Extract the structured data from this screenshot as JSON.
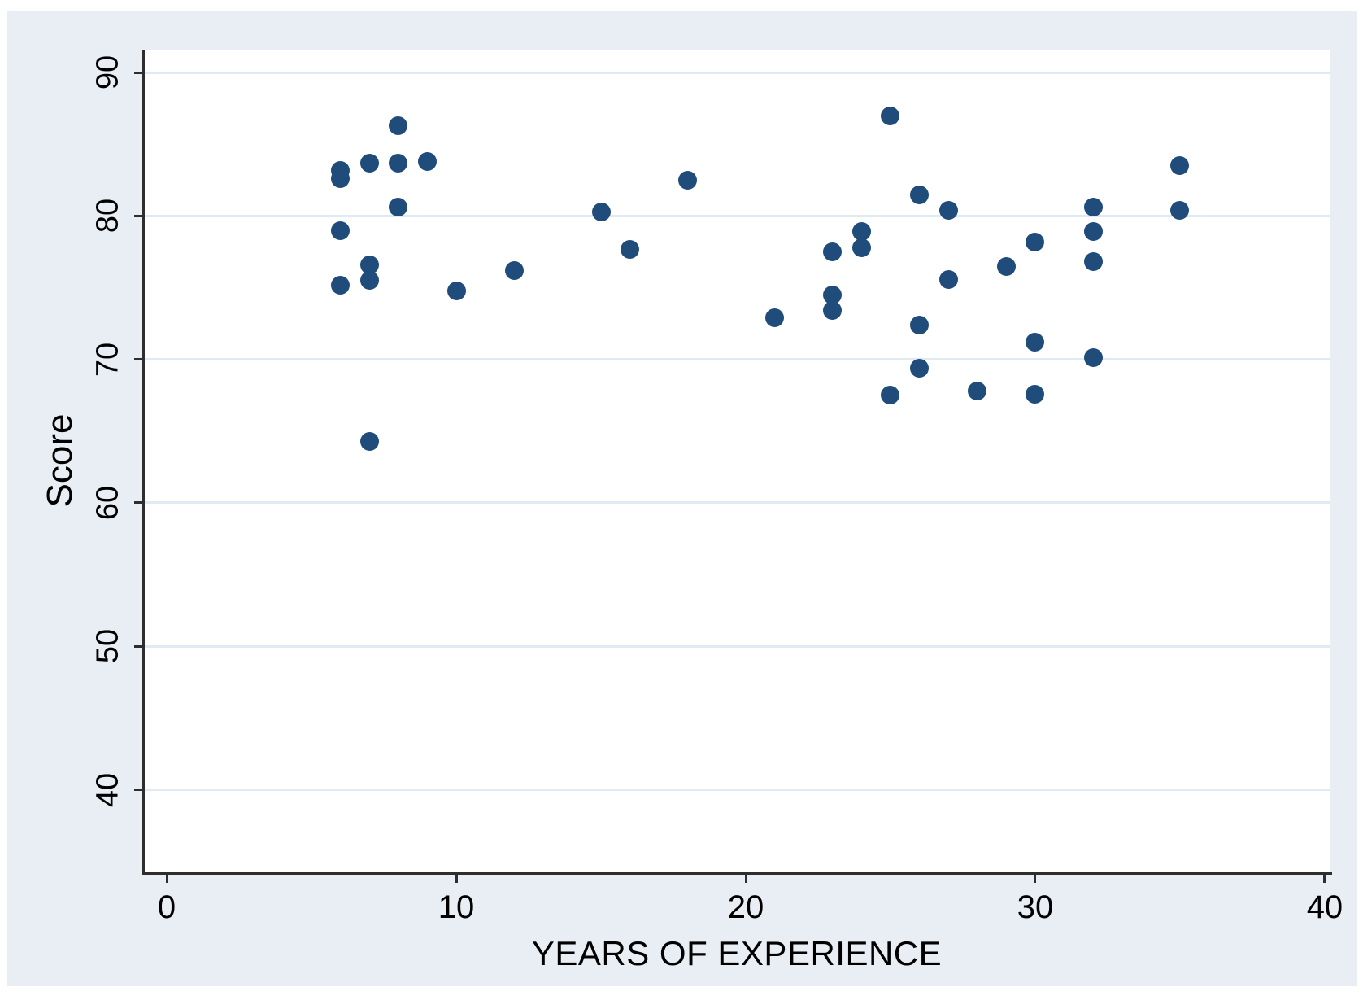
{
  "chart_data": {
    "type": "scatter",
    "title": "",
    "xlabel": "YEARS OF EXPERIENCE",
    "ylabel": "Score",
    "x_ticks": [
      0,
      10,
      20,
      30,
      40
    ],
    "y_ticks": [
      40,
      50,
      60,
      70,
      80,
      90
    ],
    "xlim": [
      -0.76,
      40.17
    ],
    "ylim": [
      34.3,
      91.6
    ],
    "grid": "horizontal gridlines only",
    "legend": "none",
    "marker_color": "#1f4c7a",
    "figure_background": "#e9eef4",
    "plot_background": "#ffffff",
    "gridline_color": "#dfeaf3",
    "axis_color": "#2e2e2e",
    "points": [
      [
        6,
        83.2
      ],
      [
        6,
        82.6
      ],
      [
        6,
        79.0
      ],
      [
        6,
        75.2
      ],
      [
        7,
        83.7
      ],
      [
        7,
        76.6
      ],
      [
        7,
        75.5
      ],
      [
        7,
        64.3
      ],
      [
        8,
        86.3
      ],
      [
        8,
        83.7
      ],
      [
        8,
        80.6
      ],
      [
        9,
        83.8
      ],
      [
        10,
        74.8
      ],
      [
        12,
        76.2
      ],
      [
        15,
        80.3
      ],
      [
        16,
        77.7
      ],
      [
        18,
        82.5
      ],
      [
        21,
        72.9
      ],
      [
        23,
        77.5
      ],
      [
        23,
        74.5
      ],
      [
        23,
        73.4
      ],
      [
        24,
        78.9
      ],
      [
        24,
        77.8
      ],
      [
        25,
        87.0
      ],
      [
        25,
        67.5
      ],
      [
        26,
        81.5
      ],
      [
        26,
        72.4
      ],
      [
        26,
        69.4
      ],
      [
        27,
        80.4
      ],
      [
        27,
        75.6
      ],
      [
        28,
        67.8
      ],
      [
        29,
        76.5
      ],
      [
        30,
        78.2
      ],
      [
        30,
        71.2
      ],
      [
        30,
        67.6
      ],
      [
        32,
        80.6
      ],
      [
        32,
        78.9
      ],
      [
        32,
        76.8
      ],
      [
        32,
        70.1
      ],
      [
        35,
        83.5
      ],
      [
        35,
        80.4
      ]
    ]
  }
}
